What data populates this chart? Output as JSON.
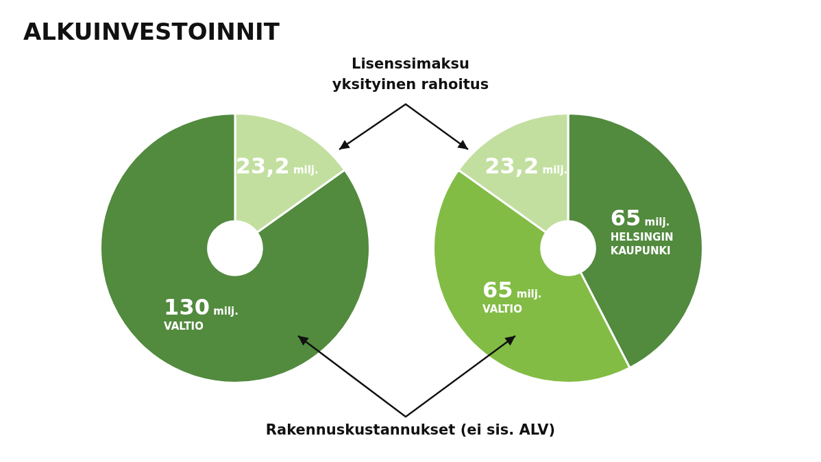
{
  "chart_data": [
    {
      "type": "donut",
      "title": "ALKUINVESTOINNIT",
      "categories": [
        null,
        "VALTIO"
      ],
      "values": [
        23.2,
        130
      ],
      "colors": [
        "#c2dfa0",
        "#528a3e"
      ],
      "value_labels": [
        "23,2 milj.",
        "130 milj."
      ],
      "annotations": [
        "Lisenssimaksu\nyksityinen rahoitus",
        "Rakennuskustannukset (ei sis. ALV)"
      ]
    },
    {
      "type": "donut",
      "categories": [
        "HELSINGIN KAUPUNKI",
        "VALTIO",
        null
      ],
      "values": [
        65,
        65,
        23.2
      ],
      "colors": [
        "#528a3e",
        "#82bc45",
        "#c2dfa0"
      ],
      "value_labels": [
        "65 milj.",
        "65 milj.",
        "23,2 milj."
      ]
    }
  ]
}
